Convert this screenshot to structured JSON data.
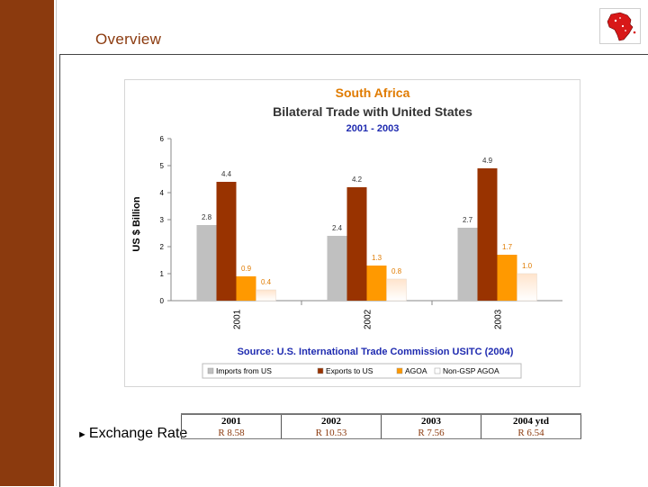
{
  "slide": {
    "title": "Overview"
  },
  "bullet": {
    "arrow": "►",
    "text": "Exchange Rate"
  },
  "exchange_table": {
    "headers": [
      "2001",
      "2002",
      "2003",
      "2004 ytd"
    ],
    "values": [
      "R 8.58",
      "R 10.53",
      "R 7.56",
      "R 6.54"
    ]
  },
  "chart_data": {
    "type": "bar",
    "title": "South Africa",
    "subtitle": "Bilateral Trade with United States",
    "period": "2001 - 2003",
    "source": "Source: U.S. International Trade Commission USITC (2004)",
    "ylabel": "US $ Billion",
    "xlabel": "",
    "ylim": [
      0,
      6
    ],
    "yticks": [
      0,
      1,
      2,
      3,
      4,
      5,
      6
    ],
    "categories": [
      "2001",
      "2002",
      "2003"
    ],
    "series": [
      {
        "name": "Imports from US",
        "values": [
          2.8,
          2.4,
          2.7
        ],
        "labels": [
          "2.8",
          "2.4",
          "2.7"
        ],
        "color": "#c0c0c0"
      },
      {
        "name": "Exports to US",
        "values": [
          4.4,
          4.2,
          4.9
        ],
        "labels": [
          "4.4",
          "4.2",
          "4.9"
        ],
        "color": "#993300"
      },
      {
        "name": "AGOA",
        "values": [
          0.9,
          1.3,
          1.7
        ],
        "labels": [
          "0.9",
          "1.3",
          "1.7"
        ],
        "color": "#ff9900"
      },
      {
        "name": "Non-GSP AGOA",
        "values": [
          0.4,
          0.8,
          1.0
        ],
        "labels": [
          "0.4",
          "0.8",
          "1.0"
        ],
        "color": "#fff2e6"
      }
    ],
    "legend_position": "bottom",
    "grid": false
  },
  "colors": {
    "brand": "#8B3A0E",
    "title_orange": "#e07b00",
    "period_blue": "#1f2bb0",
    "source_blue": "#1f2bb0"
  },
  "icons": {
    "logo": "africa-map-icon"
  }
}
